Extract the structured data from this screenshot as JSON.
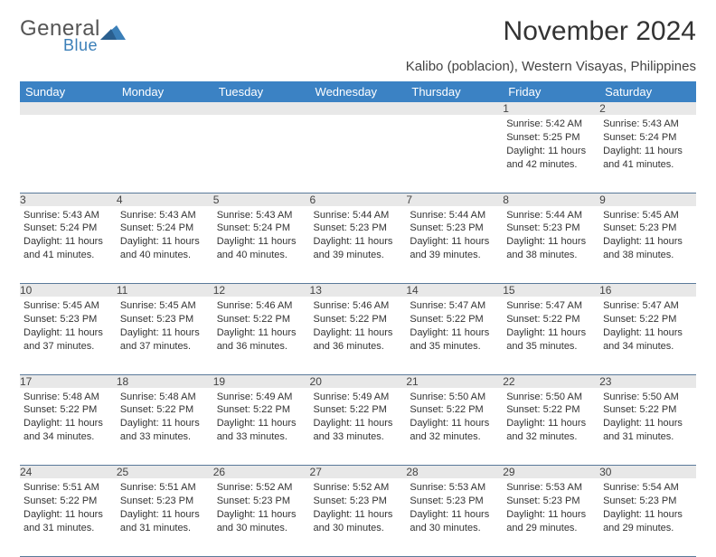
{
  "logo": {
    "general": "General",
    "blue": "Blue"
  },
  "title": "November 2024",
  "location": "Kalibo (poblacion), Western Visayas, Philippines",
  "colors": {
    "header_bg": "#3b82c4",
    "header_fg": "#ffffff",
    "daynum_bg": "#e8e8e8",
    "border": "#5a7a9a",
    "logo_blue": "#3b7fb8"
  },
  "weekdays": [
    "Sunday",
    "Monday",
    "Tuesday",
    "Wednesday",
    "Thursday",
    "Friday",
    "Saturday"
  ],
  "weeks": [
    [
      null,
      null,
      null,
      null,
      null,
      {
        "n": "1",
        "sr": "5:42 AM",
        "ss": "5:25 PM",
        "dl": "11 hours and 42 minutes."
      },
      {
        "n": "2",
        "sr": "5:43 AM",
        "ss": "5:24 PM",
        "dl": "11 hours and 41 minutes."
      }
    ],
    [
      {
        "n": "3",
        "sr": "5:43 AM",
        "ss": "5:24 PM",
        "dl": "11 hours and 41 minutes."
      },
      {
        "n": "4",
        "sr": "5:43 AM",
        "ss": "5:24 PM",
        "dl": "11 hours and 40 minutes."
      },
      {
        "n": "5",
        "sr": "5:43 AM",
        "ss": "5:24 PM",
        "dl": "11 hours and 40 minutes."
      },
      {
        "n": "6",
        "sr": "5:44 AM",
        "ss": "5:23 PM",
        "dl": "11 hours and 39 minutes."
      },
      {
        "n": "7",
        "sr": "5:44 AM",
        "ss": "5:23 PM",
        "dl": "11 hours and 39 minutes."
      },
      {
        "n": "8",
        "sr": "5:44 AM",
        "ss": "5:23 PM",
        "dl": "11 hours and 38 minutes."
      },
      {
        "n": "9",
        "sr": "5:45 AM",
        "ss": "5:23 PM",
        "dl": "11 hours and 38 minutes."
      }
    ],
    [
      {
        "n": "10",
        "sr": "5:45 AM",
        "ss": "5:23 PM",
        "dl": "11 hours and 37 minutes."
      },
      {
        "n": "11",
        "sr": "5:45 AM",
        "ss": "5:23 PM",
        "dl": "11 hours and 37 minutes."
      },
      {
        "n": "12",
        "sr": "5:46 AM",
        "ss": "5:22 PM",
        "dl": "11 hours and 36 minutes."
      },
      {
        "n": "13",
        "sr": "5:46 AM",
        "ss": "5:22 PM",
        "dl": "11 hours and 36 minutes."
      },
      {
        "n": "14",
        "sr": "5:47 AM",
        "ss": "5:22 PM",
        "dl": "11 hours and 35 minutes."
      },
      {
        "n": "15",
        "sr": "5:47 AM",
        "ss": "5:22 PM",
        "dl": "11 hours and 35 minutes."
      },
      {
        "n": "16",
        "sr": "5:47 AM",
        "ss": "5:22 PM",
        "dl": "11 hours and 34 minutes."
      }
    ],
    [
      {
        "n": "17",
        "sr": "5:48 AM",
        "ss": "5:22 PM",
        "dl": "11 hours and 34 minutes."
      },
      {
        "n": "18",
        "sr": "5:48 AM",
        "ss": "5:22 PM",
        "dl": "11 hours and 33 minutes."
      },
      {
        "n": "19",
        "sr": "5:49 AM",
        "ss": "5:22 PM",
        "dl": "11 hours and 33 minutes."
      },
      {
        "n": "20",
        "sr": "5:49 AM",
        "ss": "5:22 PM",
        "dl": "11 hours and 33 minutes."
      },
      {
        "n": "21",
        "sr": "5:50 AM",
        "ss": "5:22 PM",
        "dl": "11 hours and 32 minutes."
      },
      {
        "n": "22",
        "sr": "5:50 AM",
        "ss": "5:22 PM",
        "dl": "11 hours and 32 minutes."
      },
      {
        "n": "23",
        "sr": "5:50 AM",
        "ss": "5:22 PM",
        "dl": "11 hours and 31 minutes."
      }
    ],
    [
      {
        "n": "24",
        "sr": "5:51 AM",
        "ss": "5:22 PM",
        "dl": "11 hours and 31 minutes."
      },
      {
        "n": "25",
        "sr": "5:51 AM",
        "ss": "5:23 PM",
        "dl": "11 hours and 31 minutes."
      },
      {
        "n": "26",
        "sr": "5:52 AM",
        "ss": "5:23 PM",
        "dl": "11 hours and 30 minutes."
      },
      {
        "n": "27",
        "sr": "5:52 AM",
        "ss": "5:23 PM",
        "dl": "11 hours and 30 minutes."
      },
      {
        "n": "28",
        "sr": "5:53 AM",
        "ss": "5:23 PM",
        "dl": "11 hours and 30 minutes."
      },
      {
        "n": "29",
        "sr": "5:53 AM",
        "ss": "5:23 PM",
        "dl": "11 hours and 29 minutes."
      },
      {
        "n": "30",
        "sr": "5:54 AM",
        "ss": "5:23 PM",
        "dl": "11 hours and 29 minutes."
      }
    ]
  ],
  "labels": {
    "sunrise": "Sunrise:",
    "sunset": "Sunset:",
    "daylight": "Daylight:"
  }
}
